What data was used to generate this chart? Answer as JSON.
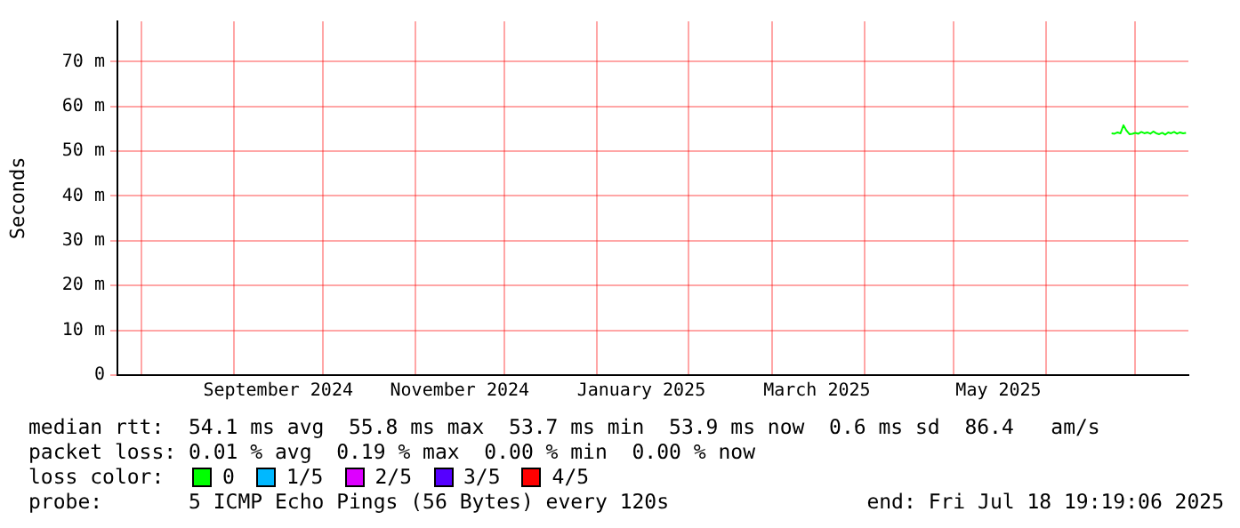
{
  "chart_data": {
    "type": "line",
    "ylabel": "Seconds",
    "x": [
      "2025-06-23",
      "2025-06-24",
      "2025-06-25",
      "2025-06-26",
      "2025-06-27",
      "2025-06-28",
      "2025-06-29",
      "2025-06-30",
      "2025-07-01",
      "2025-07-02",
      "2025-07-03",
      "2025-07-04",
      "2025-07-05",
      "2025-07-06",
      "2025-07-07",
      "2025-07-08",
      "2025-07-09",
      "2025-07-10",
      "2025-07-11",
      "2025-07-12",
      "2025-07-13",
      "2025-07-14",
      "2025-07-15",
      "2025-07-16",
      "2025-07-17",
      "2025-07-18"
    ],
    "series": [
      {
        "color": "#00ff00",
        "values": [
          54.0,
          53.9,
          54.2,
          54.0,
          55.8,
          54.6,
          53.8,
          53.9,
          54.1,
          53.9,
          54.3,
          54.0,
          54.2,
          53.9,
          54.4,
          54.0,
          53.8,
          54.1,
          53.7,
          54.2,
          54.0,
          54.3,
          53.9,
          54.2,
          54.0,
          54.1
        ]
      }
    ],
    "xlim": [
      "2024-07-24",
      "2025-07-18T19:19"
    ],
    "xticks": [
      {
        "value": "2024-08-01",
        "label": null
      },
      {
        "value": "2024-09-01",
        "label": null
      },
      {
        "value": "2024-09-16",
        "label": "September 2024"
      },
      {
        "value": "2024-10-01",
        "label": null
      },
      {
        "value": "2024-11-01",
        "label": null
      },
      {
        "value": "2024-11-16",
        "label": "November 2024"
      },
      {
        "value": "2024-12-01",
        "label": null
      },
      {
        "value": "2025-01-01",
        "label": null
      },
      {
        "value": "2025-01-16",
        "label": "January 2025"
      },
      {
        "value": "2025-02-01",
        "label": null
      },
      {
        "value": "2025-03-01",
        "label": null
      },
      {
        "value": "2025-03-16",
        "label": "March 2025"
      },
      {
        "value": "2025-04-01",
        "label": null
      },
      {
        "value": "2025-05-01",
        "label": null
      },
      {
        "value": "2025-05-16",
        "label": "May 2025"
      },
      {
        "value": "2025-06-01",
        "label": null
      },
      {
        "value": "2025-07-01",
        "label": null
      }
    ],
    "ylim": [
      0,
      79
    ],
    "yticks": [
      0,
      {
        "value": 10,
        "label": "10 m"
      },
      {
        "value": 20,
        "label": "20 m"
      },
      {
        "value": 30,
        "label": "30 m"
      },
      {
        "value": 40,
        "label": "40 m"
      },
      {
        "value": 50,
        "label": "50 m"
      },
      {
        "value": 60,
        "label": "60 m"
      },
      {
        "value": 70,
        "label": "70 m"
      }
    ],
    "grid": true,
    "legend": false,
    "marker": "none",
    "line_style": "solid",
    "annotations": [
      "median rtt:  54.1 ms avg  55.8 ms max  53.7 ms min  53.9 ms now  0.6 ms sd  86.4   am/s",
      "packet loss: 0.01 % avg  0.19 % max  0.00 % min  0.00 % now",
      "loss color:",
      "0",
      "1/5",
      "2/5",
      "3/5",
      "4/5",
      "probe:       5 ICMP Echo Pings (56 Bytes) every 120s",
      "end: Fri Jul 18 19:19:06 2025"
    ]
  }
}
